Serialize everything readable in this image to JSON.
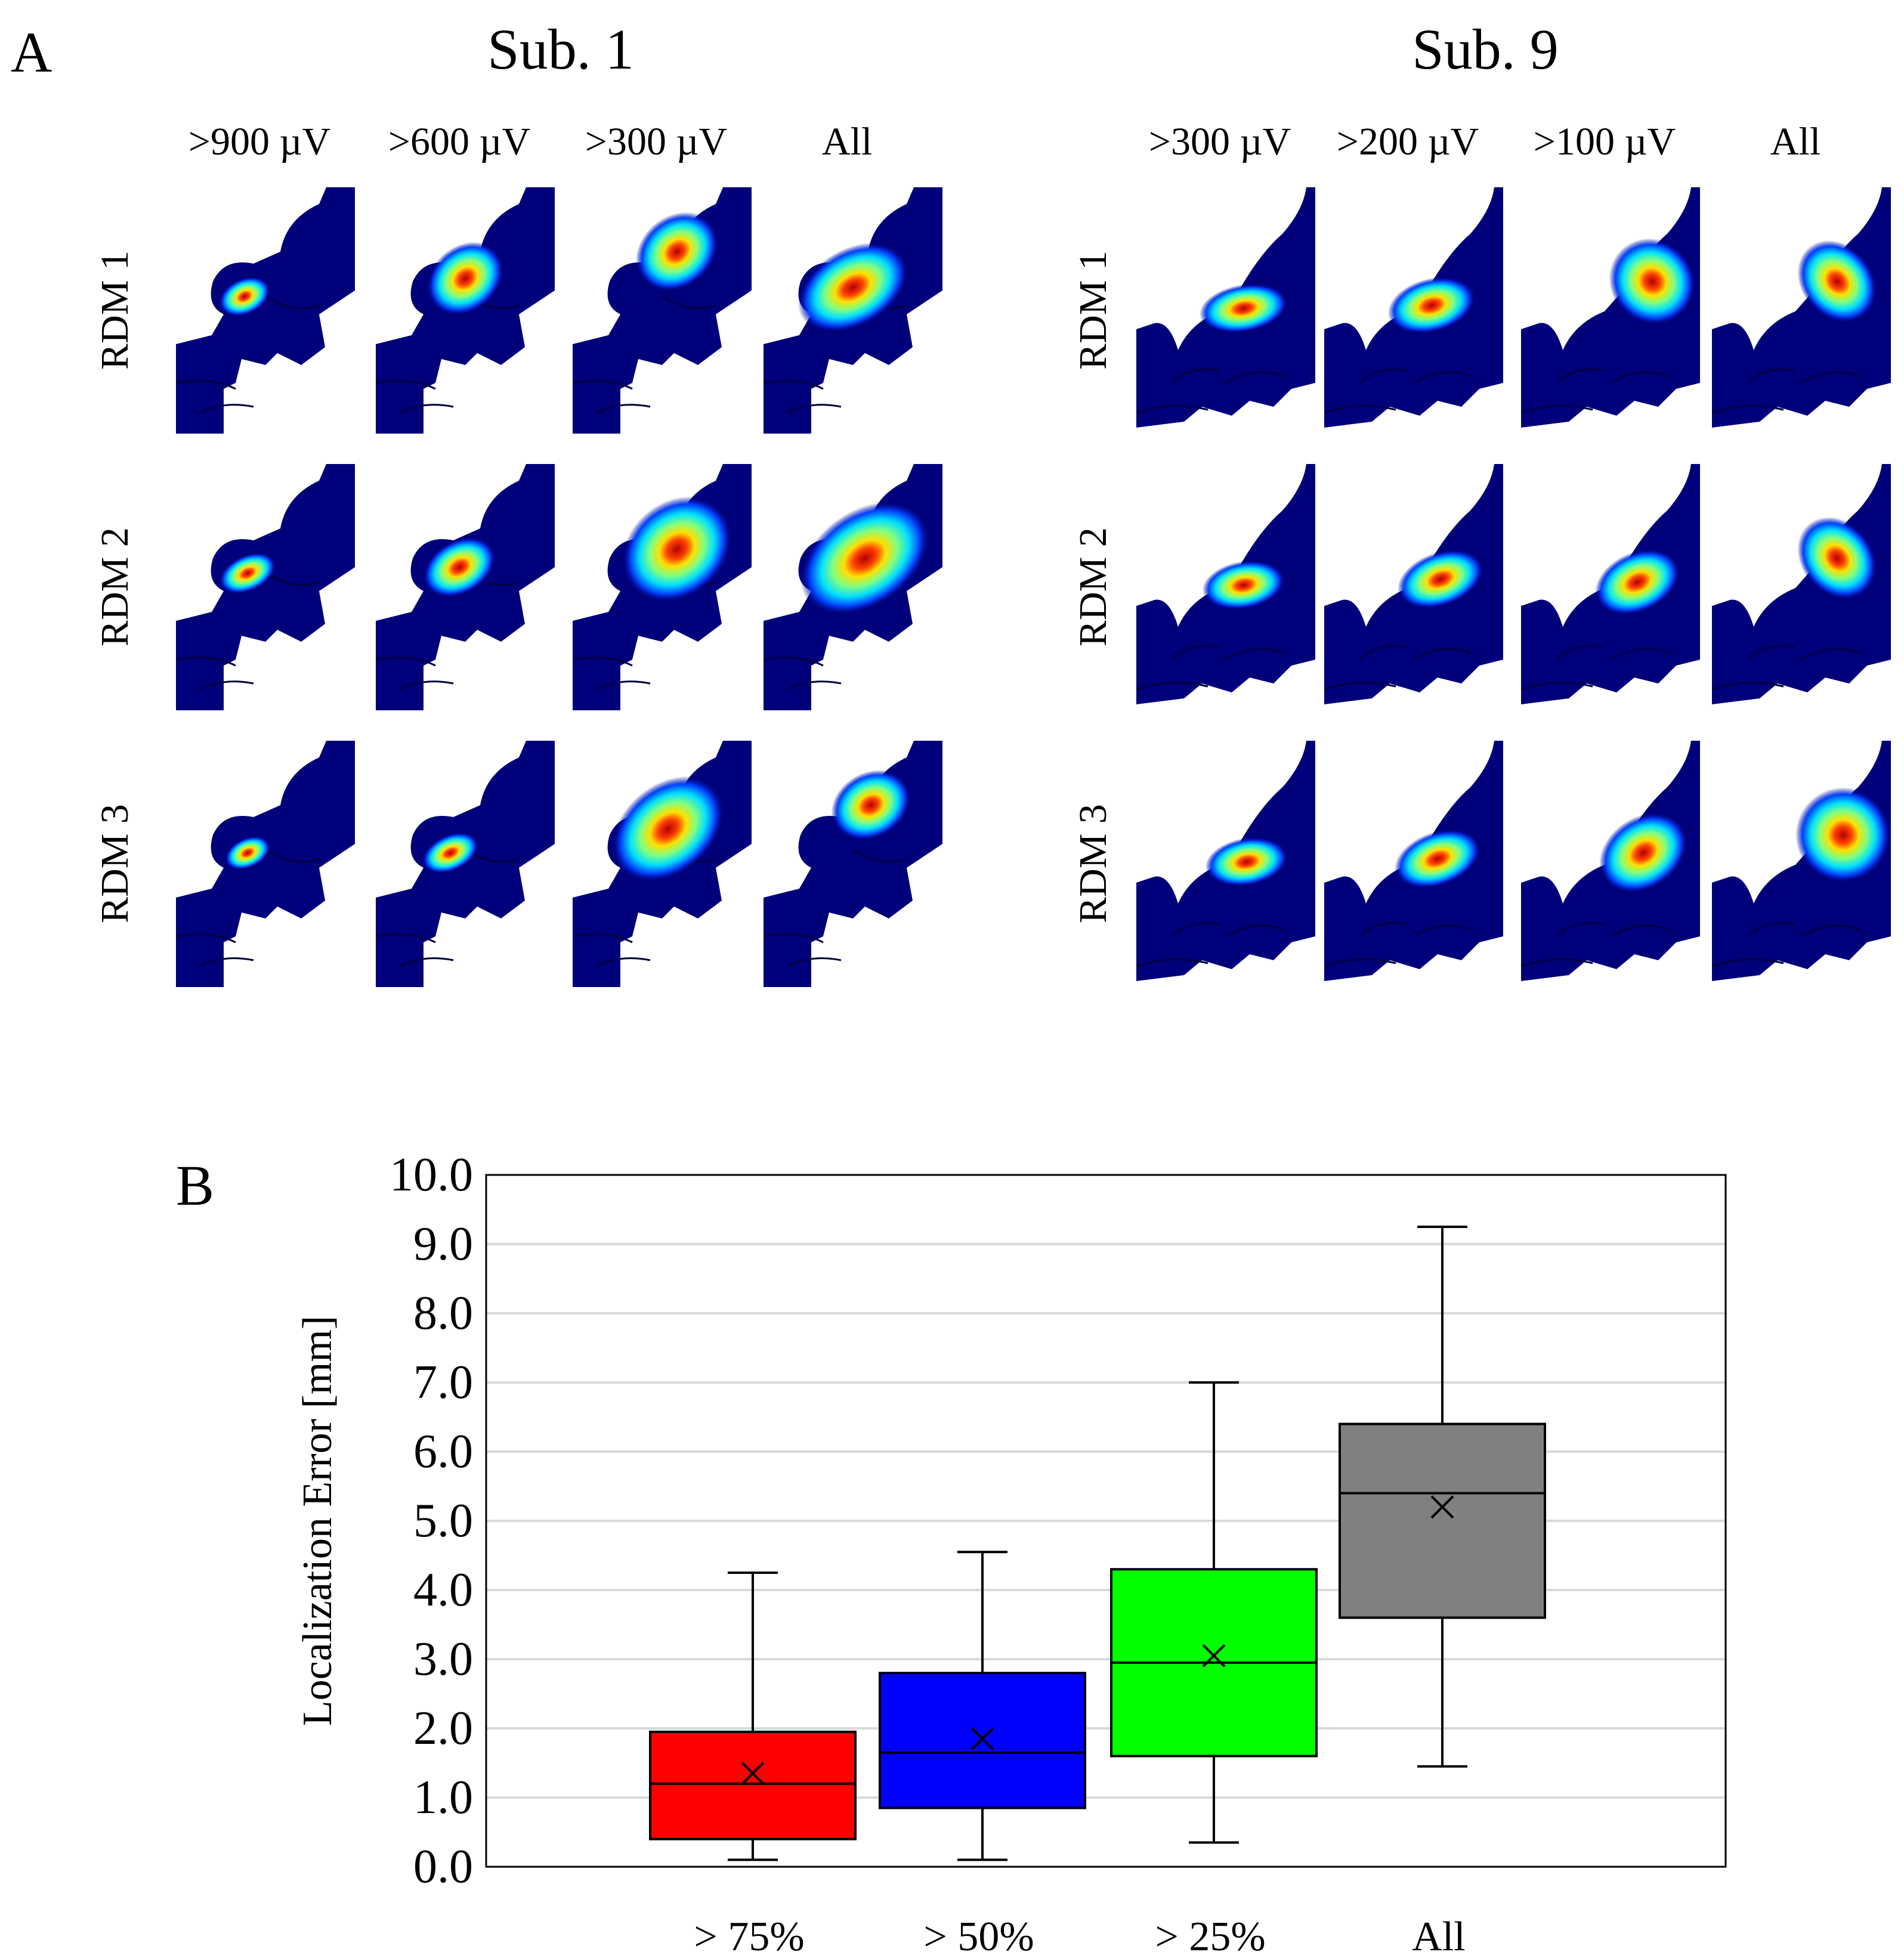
{
  "panel_a": {
    "letter": "A",
    "subjects": [
      {
        "title": "Sub. 1",
        "columns": [
          ">900 µV",
          ">600 µV",
          ">300 µV",
          "All"
        ],
        "rows": [
          "RDM 1",
          "RDM 2",
          "RDM 3"
        ]
      },
      {
        "title": "Sub. 9",
        "columns": [
          ">300 µV",
          ">200 µV",
          ">100 µV",
          "All"
        ],
        "rows": [
          "RDM 1",
          "RDM 2",
          "RDM 3"
        ]
      }
    ],
    "colormap": [
      "#00007f",
      "#0040ff",
      "#00e0ff",
      "#80ff80",
      "#ffe000",
      "#ff4000",
      "#b00000"
    ]
  },
  "panel_b": {
    "letter": "B",
    "chart_data": {
      "type": "box",
      "title": "",
      "xlabel": "",
      "ylabel": "Localization Error [mm]",
      "ylim": [
        0,
        10
      ],
      "yticks": [
        "0.0",
        "1.0",
        "2.0",
        "3.0",
        "4.0",
        "5.0",
        "6.0",
        "7.0",
        "8.0",
        "9.0",
        "10.0"
      ],
      "grid": true,
      "categories": [
        "> 75%",
        "> 50%",
        "> 25%",
        "All"
      ],
      "boxes": [
        {
          "label": "> 75%",
          "color": "#ff0000",
          "min": 0.1,
          "q1": 0.4,
          "median": 1.2,
          "q3": 1.95,
          "max": 4.25,
          "mean": 1.35
        },
        {
          "label": "> 50%",
          "color": "#0000ff",
          "min": 0.1,
          "q1": 0.85,
          "median": 1.65,
          "q3": 2.8,
          "max": 4.55,
          "mean": 1.85
        },
        {
          "label": "> 25%",
          "color": "#00ff00",
          "min": 0.35,
          "q1": 1.6,
          "median": 2.95,
          "q3": 4.3,
          "max": 7.0,
          "mean": 3.05
        },
        {
          "label": "All",
          "color": "#808080",
          "min": 1.45,
          "q1": 3.6,
          "median": 5.4,
          "q3": 6.4,
          "max": 9.25,
          "mean": 5.2
        }
      ]
    }
  }
}
